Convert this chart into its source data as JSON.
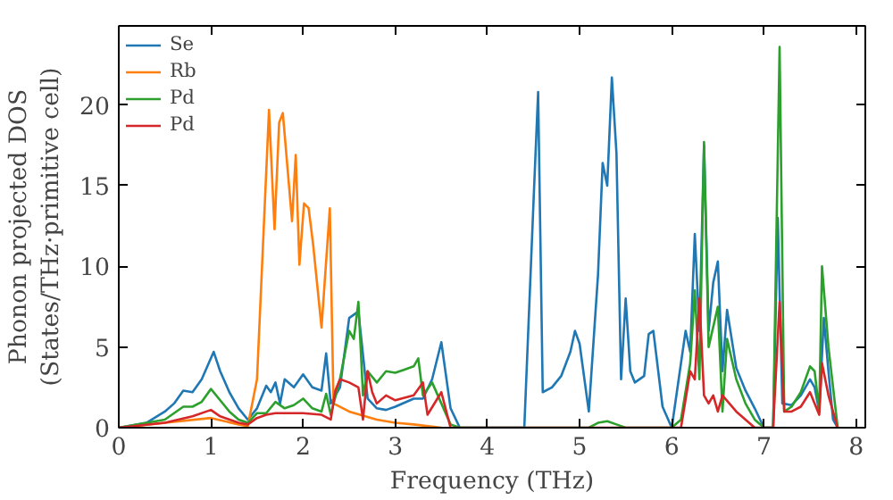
{
  "chart_data": {
    "type": "line",
    "xlabel": "Frequency (THz)",
    "ylabel": "Phonon projected DOS\n(States/THz·primitive cell)",
    "xlim": [
      0,
      8.1
    ],
    "ylim": [
      0,
      24.9
    ],
    "xticks": [
      0,
      1,
      2,
      3,
      4,
      5,
      6,
      7,
      8
    ],
    "yticks": [
      0,
      5,
      10,
      15,
      20
    ],
    "grid": false,
    "legend": "top left",
    "series": [
      {
        "name": "Se",
        "color": "#1f77b4",
        "x": [
          0,
          0.3,
          0.5,
          0.6,
          0.7,
          0.8,
          0.9,
          1.03,
          1.1,
          1.2,
          1.3,
          1.4,
          1.5,
          1.6,
          1.65,
          1.7,
          1.75,
          1.8,
          1.9,
          2.0,
          2.1,
          2.2,
          2.25,
          2.3,
          2.4,
          2.5,
          2.6,
          2.7,
          2.8,
          2.9,
          3.0,
          3.2,
          3.3,
          3.4,
          3.5,
          3.6,
          3.7,
          4.4,
          4.5,
          4.55,
          4.6,
          4.7,
          4.8,
          4.9,
          4.95,
          5.0,
          5.1,
          5.2,
          5.25,
          5.3,
          5.35,
          5.4,
          5.45,
          5.5,
          5.55,
          5.6,
          5.7,
          5.75,
          5.8,
          5.9,
          6.0,
          6.1,
          6.15,
          6.2,
          6.25,
          6.3,
          6.35,
          6.4,
          6.45,
          6.5,
          6.55,
          6.6,
          6.7,
          6.8,
          6.9,
          7.0,
          7.1,
          7.15,
          7.2,
          7.3,
          7.4,
          7.5,
          7.55,
          7.6,
          7.65,
          7.7,
          7.75,
          7.8
        ],
        "values": [
          0,
          0.3,
          1,
          1.5,
          2.3,
          2.2,
          3,
          4.7,
          3.5,
          2.2,
          1.2,
          0.5,
          1.2,
          2.6,
          2.2,
          2.8,
          1.5,
          3,
          2.5,
          3.3,
          2.5,
          2.3,
          4.6,
          1.5,
          2.5,
          6.8,
          7.2,
          1.8,
          1.2,
          1.1,
          1.3,
          1.8,
          1.8,
          3,
          5.3,
          1.2,
          0,
          0,
          14,
          20.8,
          2.2,
          2.5,
          3.2,
          4.7,
          6,
          5.2,
          1,
          9.5,
          16.4,
          15,
          21.7,
          17,
          3,
          8,
          3.5,
          2.8,
          3.2,
          5.8,
          6,
          1.3,
          0,
          4,
          6,
          4.7,
          12,
          6,
          17.5,
          6,
          9,
          10.3,
          3.5,
          7.3,
          3.7,
          2.3,
          1.2,
          0,
          0,
          13,
          1.5,
          1.4,
          2,
          3,
          2.5,
          1,
          6.8,
          3.5,
          0.5,
          0
        ]
      },
      {
        "name": "Rb",
        "color": "#ff7f0e",
        "x": [
          0,
          0.5,
          1.0,
          1.3,
          1.4,
          1.5,
          1.63,
          1.69,
          1.74,
          1.78,
          1.88,
          1.92,
          1.96,
          2.01,
          2.06,
          2.11,
          2.2,
          2.29,
          2.33,
          2.5,
          2.8,
          3.0,
          3.2,
          3.5
        ],
        "values": [
          0,
          0.3,
          0.6,
          0.2,
          0.1,
          3,
          19.7,
          12.3,
          18.9,
          19.5,
          12.8,
          16.9,
          10.1,
          13.9,
          13.6,
          11.3,
          6.2,
          13.6,
          1.5,
          1,
          0.5,
          0.3,
          0.2,
          0
        ]
      },
      {
        "name": "Pd",
        "color": "#2ca02c",
        "x": [
          0,
          0.5,
          0.7,
          0.8,
          0.9,
          1.0,
          1.1,
          1.2,
          1.3,
          1.4,
          1.5,
          1.6,
          1.7,
          1.8,
          1.9,
          2.0,
          2.1,
          2.2,
          2.25,
          2.3,
          2.4,
          2.5,
          2.55,
          2.6,
          2.65,
          2.7,
          2.8,
          2.9,
          3.0,
          3.1,
          3.2,
          3.25,
          3.3,
          3.4,
          3.5,
          3.6,
          3.7,
          5.1,
          5.2,
          5.3,
          5.4,
          5.5,
          6.0,
          6.1,
          6.2,
          6.25,
          6.3,
          6.35,
          6.4,
          6.5,
          6.55,
          6.6,
          6.7,
          6.8,
          6.9,
          7.0,
          7.1,
          7.17,
          7.22,
          7.3,
          7.4,
          7.5,
          7.55,
          7.6,
          7.63,
          7.7,
          7.8
        ],
        "values": [
          0,
          0.5,
          1.3,
          1.3,
          1.6,
          2.4,
          1.7,
          1,
          0.5,
          0.3,
          0.9,
          0.9,
          1.6,
          1.2,
          1.4,
          1.8,
          1.2,
          1,
          2.1,
          0.8,
          3,
          6,
          5.5,
          7.8,
          2,
          3.5,
          2.8,
          3.5,
          3.4,
          3.6,
          3.8,
          4.3,
          2,
          2.8,
          1.5,
          0.2,
          0,
          0,
          0.3,
          0.4,
          0.2,
          0,
          0,
          0.5,
          4,
          8.5,
          3,
          17.7,
          5,
          7.5,
          1,
          5.5,
          3,
          1.5,
          0.5,
          0,
          0,
          23.6,
          1,
          1.3,
          2.2,
          3.8,
          3.5,
          1,
          10,
          5,
          0
        ]
      },
      {
        "name": "Pd",
        "color": "#d62728",
        "x": [
          0,
          0.5,
          0.8,
          1.0,
          1.1,
          1.3,
          1.4,
          1.5,
          1.6,
          1.7,
          1.8,
          2.0,
          2.2,
          2.3,
          2.35,
          2.4,
          2.5,
          2.6,
          2.65,
          2.7,
          2.75,
          2.8,
          2.9,
          3.0,
          3.2,
          3.3,
          3.35,
          3.5,
          3.6,
          6.1,
          6.2,
          6.25,
          6.3,
          6.35,
          6.4,
          6.45,
          6.5,
          6.55,
          6.7,
          6.9,
          7.1,
          7.17,
          7.22,
          7.3,
          7.4,
          7.5,
          7.55,
          7.6,
          7.63,
          7.7,
          7.8
        ],
        "values": [
          0,
          0.3,
          0.7,
          1.1,
          0.7,
          0.3,
          0.2,
          0.6,
          0.8,
          0.9,
          0.9,
          0.9,
          0.8,
          0.5,
          2.3,
          3,
          2.8,
          2.5,
          0.5,
          3.5,
          2.2,
          1.5,
          2,
          1.7,
          2,
          2.8,
          0.8,
          2.2,
          0,
          0,
          3.5,
          3,
          8,
          2,
          1.5,
          2,
          1,
          2,
          1,
          0,
          0,
          7.8,
          1,
          1,
          1.3,
          2.2,
          1.5,
          0.8,
          4,
          2,
          0
        ]
      }
    ]
  }
}
